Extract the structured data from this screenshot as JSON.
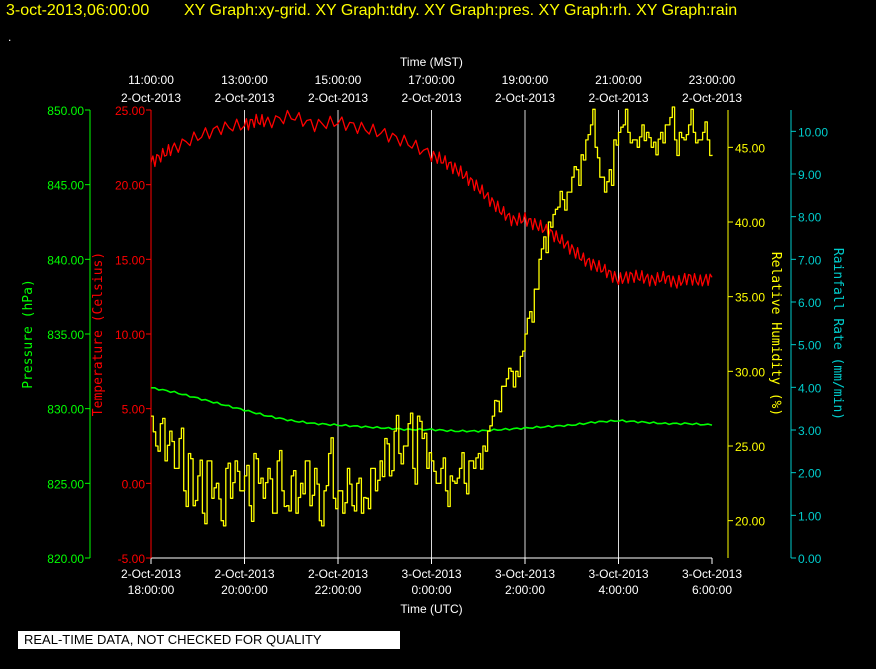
{
  "header": {
    "date_label": "3-oct-2013,06:00:00",
    "graph_titles": "XY Graph:xy-grid.  XY Graph:tdry.  XY Graph:pres.  XY Graph:rh.  XY Graph:rain",
    "dot": "."
  },
  "footer": {
    "quality_notice": "REAL-TIME DATA, NOT CHECKED FOR QUALITY"
  },
  "colors": {
    "background": "#000000",
    "temperature": "#ff0000",
    "pressure": "#00ff00",
    "humidity": "#ffff00",
    "rain": "#00cccc",
    "grid": "#ffffff"
  },
  "chart_data": {
    "type": "line",
    "grid": "vertical",
    "top_axis": {
      "label": "Time (MST)",
      "ticks": [
        {
          "t": 0,
          "time": "11:00:00",
          "date": "2-Oct-2013"
        },
        {
          "t": 2,
          "time": "13:00:00",
          "date": "2-Oct-2013"
        },
        {
          "t": 4,
          "time": "15:00:00",
          "date": "2-Oct-2013"
        },
        {
          "t": 6,
          "time": "17:00:00",
          "date": "2-Oct-2013"
        },
        {
          "t": 8,
          "time": "19:00:00",
          "date": "2-Oct-2013"
        },
        {
          "t": 10,
          "time": "21:00:00",
          "date": "2-Oct-2013"
        },
        {
          "t": 12,
          "time": "23:00:00",
          "date": "2-Oct-2013"
        }
      ]
    },
    "bottom_axis": {
      "label": "Time (UTC)",
      "range": [
        "2-Oct-2013 18:00:00",
        "3-Oct-2013 6:00:00"
      ],
      "ticks": [
        {
          "t": 0,
          "date": "2-Oct-2013",
          "time": "18:00:00"
        },
        {
          "t": 2,
          "date": "2-Oct-2013",
          "time": "20:00:00"
        },
        {
          "t": 4,
          "date": "2-Oct-2013",
          "time": "22:00:00"
        },
        {
          "t": 6,
          "date": "3-Oct-2013",
          "time": "0:00:00"
        },
        {
          "t": 8,
          "date": "3-Oct-2013",
          "time": "2:00:00"
        },
        {
          "t": 10,
          "date": "3-Oct-2013",
          "time": "4:00:00"
        },
        {
          "t": 12,
          "date": "3-Oct-2013",
          "time": "6:00:00"
        }
      ]
    },
    "axes": {
      "pressure": {
        "label": "Pressure (hPa)",
        "range": [
          820,
          850
        ],
        "ticks": [
          "820.00",
          "825.00",
          "830.00",
          "835.00",
          "840.00",
          "845.00",
          "850.00"
        ]
      },
      "temperature": {
        "label": "Temperature (Celsius)",
        "range": [
          -5,
          25
        ],
        "ticks": [
          "-5.00",
          "0.00",
          "5.00",
          "10.00",
          "15.00",
          "20.00",
          "25.00"
        ]
      },
      "humidity": {
        "label": "Relative Humidity (%)",
        "range": [
          17.5,
          47.5
        ],
        "ticks": [
          "20.00",
          "25.00",
          "30.00",
          "35.00",
          "40.00",
          "45.00"
        ]
      },
      "rain": {
        "label": "Rainfall Rate (mm/min)",
        "range": [
          0,
          10.5
        ],
        "ticks": [
          "0.00",
          "1.00",
          "2.00",
          "3.00",
          "4.00",
          "5.00",
          "6.00",
          "7.00",
          "8.00",
          "9.00",
          "10.00"
        ]
      }
    },
    "series": [
      {
        "key": "temperature",
        "x": [
          0,
          0.25,
          0.5,
          1,
          1.5,
          2,
          2.25,
          2.5,
          3,
          3.5,
          4,
          4.5,
          5,
          5.5,
          6,
          6.25,
          6.5,
          6.75,
          7,
          7.25,
          7.5,
          7.75,
          8,
          8.25,
          8.5,
          8.75,
          9,
          9.25,
          9.5,
          9.75,
          10,
          10.25,
          10.5,
          10.75,
          11,
          11.25,
          11.5,
          11.75,
          12
        ],
        "values": [
          21.5,
          22.0,
          22.5,
          23.2,
          23.8,
          24.0,
          24.3,
          24.2,
          24.6,
          24.0,
          24.2,
          23.8,
          23.4,
          22.8,
          22.0,
          21.6,
          21.1,
          20.5,
          19.8,
          19.0,
          18.2,
          17.6,
          17.7,
          17.3,
          16.9,
          16.3,
          15.7,
          15.0,
          14.6,
          14.2,
          13.6,
          13.9,
          13.8,
          13.6,
          13.8,
          13.4,
          13.8,
          13.5,
          13.8
        ]
      },
      {
        "key": "pressure",
        "x": [
          0,
          0.5,
          1,
          1.5,
          2,
          2.5,
          3,
          3.5,
          4,
          4.5,
          5,
          5.5,
          6,
          6.5,
          7,
          7.5,
          8,
          8.5,
          9,
          9.5,
          10,
          10.5,
          11,
          11.5,
          12
        ],
        "values": [
          831.4,
          831.1,
          830.7,
          830.3,
          829.9,
          829.5,
          829.2,
          829.0,
          828.9,
          828.8,
          828.7,
          828.6,
          828.6,
          828.5,
          828.5,
          828.6,
          828.7,
          828.8,
          828.9,
          829.1,
          829.2,
          829.1,
          829.0,
          829.0,
          828.9
        ]
      },
      {
        "key": "humidity",
        "x": [
          0,
          0.1,
          0.2,
          0.3,
          0.4,
          0.5,
          0.6,
          0.7,
          0.8,
          0.9,
          1.0,
          1.1,
          1.2,
          1.3,
          1.4,
          1.5,
          1.6,
          1.7,
          1.8,
          1.9,
          2.0,
          2.1,
          2.2,
          2.3,
          2.4,
          2.5,
          2.6,
          2.7,
          2.8,
          2.9,
          3.0,
          3.1,
          3.2,
          3.3,
          3.4,
          3.5,
          3.6,
          3.7,
          3.8,
          3.9,
          4.0,
          4.1,
          4.2,
          4.3,
          4.4,
          4.5,
          4.6,
          4.7,
          4.8,
          4.9,
          5.0,
          5.1,
          5.2,
          5.3,
          5.4,
          5.5,
          5.6,
          5.7,
          5.8,
          5.9,
          6.0,
          6.1,
          6.2,
          6.3,
          6.4,
          6.5,
          6.6,
          6.7,
          6.8,
          6.9,
          7.0,
          7.1,
          7.2,
          7.3,
          7.4,
          7.5,
          7.6,
          7.7,
          7.8,
          7.9,
          8.0,
          8.1,
          8.2,
          8.3,
          8.4,
          8.5,
          8.6,
          8.7,
          8.8,
          8.9,
          9.0,
          9.1,
          9.2,
          9.3,
          9.4,
          9.5,
          9.6,
          9.7,
          9.8,
          9.9,
          10.0,
          10.1,
          10.2,
          10.3,
          10.4,
          10.5,
          10.6,
          10.7,
          10.8,
          10.9,
          11.0,
          11.1,
          11.2,
          11.3,
          11.4,
          11.5,
          11.6,
          11.7,
          11.8,
          11.9,
          12.0
        ],
        "values": [
          27.0,
          25.0,
          26.5,
          24.0,
          26.0,
          23.5,
          25.5,
          22.0,
          24.5,
          21.0,
          23.0,
          20.5,
          24.0,
          21.5,
          22.5,
          20.0,
          23.5,
          21.5,
          24.0,
          22.0,
          23.0,
          21.0,
          24.5,
          22.5,
          21.5,
          23.5,
          20.5,
          24.0,
          22.0,
          21.0,
          23.0,
          20.5,
          22.5,
          24.0,
          21.0,
          23.5,
          20.0,
          22.0,
          24.5,
          21.5,
          22.0,
          20.5,
          23.5,
          21.0,
          22.5,
          20.5,
          21.5,
          23.5,
          22.0,
          24.0,
          25.5,
          23.0,
          26.0,
          24.5,
          25.0,
          26.5,
          23.5,
          27.0,
          25.5,
          23.5,
          24.0,
          22.5,
          23.5,
          22.0,
          23.0,
          22.5,
          23.5,
          22.5,
          24.0,
          23.5,
          24.5,
          25.0,
          26.0,
          27.0,
          28.0,
          29.0,
          29.5,
          30.0,
          30.0,
          31.0,
          32.5,
          34.0,
          35.5,
          37.5,
          39.0,
          40.0,
          40.5,
          41.0,
          41.5,
          42.0,
          43.0,
          43.5,
          44.5,
          45.5,
          46.5,
          45.0,
          43.0,
          42.0,
          43.5,
          45.5,
          46.0,
          46.5,
          46.0,
          45.5,
          45.0,
          46.5,
          46.0,
          45.0,
          44.5,
          46.0,
          46.5,
          47.0,
          45.5,
          46.0,
          45.5,
          46.5,
          46.0,
          45.5,
          46.0,
          45.5,
          44.5
        ]
      },
      {
        "key": "rain",
        "x": [],
        "values": []
      }
    ]
  }
}
